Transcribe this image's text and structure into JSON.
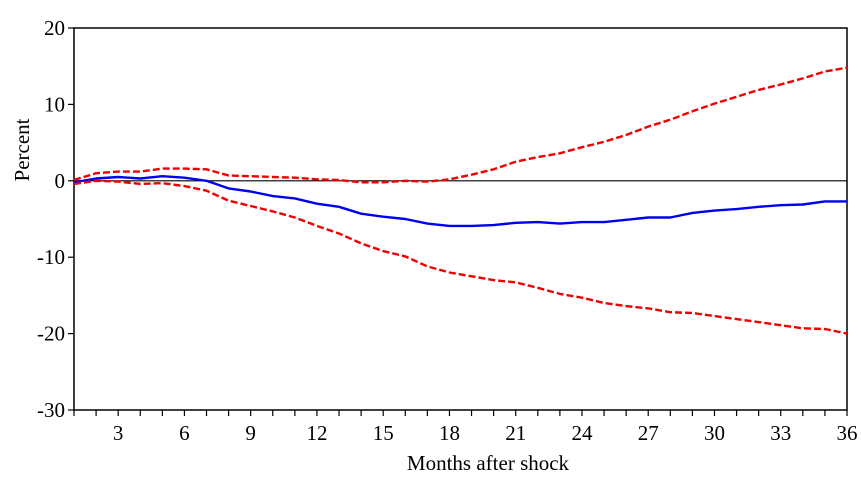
{
  "chart_data": {
    "type": "line",
    "title": "",
    "xlabel": "Months after shock",
    "ylabel": "Percent",
    "xlim": [
      1,
      36
    ],
    "ylim": [
      -30,
      20
    ],
    "x_ticks": [
      3,
      6,
      9,
      12,
      15,
      18,
      21,
      24,
      27,
      30,
      33,
      36
    ],
    "y_ticks": [
      20,
      10,
      0,
      -10,
      -20,
      -30
    ],
    "zero_line": true,
    "grid": false,
    "legend": "none",
    "x": [
      1,
      2,
      3,
      4,
      5,
      6,
      7,
      8,
      9,
      10,
      11,
      12,
      13,
      14,
      15,
      16,
      17,
      18,
      19,
      20,
      21,
      22,
      23,
      24,
      25,
      26,
      27,
      28,
      29,
      30,
      31,
      32,
      33,
      34,
      35,
      36
    ],
    "series": [
      {
        "role": "response",
        "color": "#0000ee",
        "style": "solid",
        "values": [
          -0.2,
          0.3,
          0.5,
          0.3,
          0.6,
          0.4,
          0.0,
          -1.0,
          -1.4,
          -2.0,
          -2.3,
          -3.0,
          -3.4,
          -4.3,
          -4.7,
          -5.0,
          -5.6,
          -5.9,
          -5.9,
          -5.8,
          -5.5,
          -5.4,
          -5.6,
          -5.4,
          -5.4,
          -5.1,
          -4.8,
          -4.8,
          -4.2,
          -3.9,
          -3.7,
          -3.4,
          -3.2,
          -3.1,
          -2.7,
          -2.7
        ]
      },
      {
        "role": "upper-band",
        "color": "#ee0000",
        "style": "dashed",
        "values": [
          0.1,
          1.0,
          1.2,
          1.2,
          1.6,
          1.6,
          1.5,
          0.7,
          0.6,
          0.5,
          0.4,
          0.2,
          0.1,
          -0.2,
          -0.2,
          0.0,
          -0.1,
          0.2,
          0.8,
          1.5,
          2.5,
          3.1,
          3.6,
          4.4,
          5.1,
          6.0,
          7.1,
          8.0,
          9.1,
          10.1,
          11.0,
          11.9,
          12.6,
          13.4,
          14.3,
          14.8
        ]
      },
      {
        "role": "lower-band",
        "color": "#ee0000",
        "style": "dashed",
        "values": [
          -0.4,
          0.0,
          -0.1,
          -0.4,
          -0.3,
          -0.7,
          -1.3,
          -2.6,
          -3.3,
          -4.0,
          -4.8,
          -5.9,
          -6.9,
          -8.2,
          -9.2,
          -9.9,
          -11.2,
          -12.0,
          -12.5,
          -13.0,
          -13.3,
          -14.0,
          -14.8,
          -15.3,
          -16.0,
          -16.4,
          -16.7,
          -17.2,
          -17.3,
          -17.7,
          -18.1,
          -18.5,
          -18.9,
          -19.3,
          -19.4,
          -20.0
        ]
      }
    ]
  }
}
